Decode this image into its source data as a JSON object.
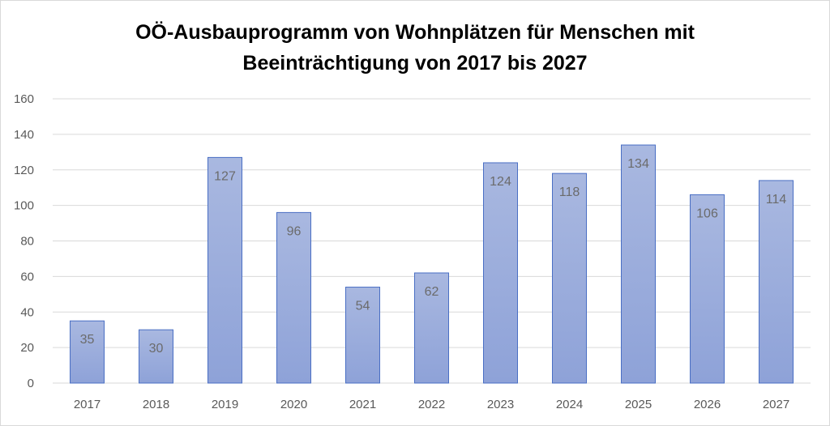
{
  "chart_data": {
    "type": "bar",
    "title_line1": "OÖ-Ausbauprogramm von Wohnplätzen für Menschen mit",
    "title_line2": "Beeinträchtigung von 2017 bis 2027",
    "categories": [
      "2017",
      "2018",
      "2019",
      "2020",
      "2021",
      "2022",
      "2023",
      "2024",
      "2025",
      "2026",
      "2027"
    ],
    "values": [
      35,
      30,
      127,
      96,
      54,
      62,
      124,
      118,
      134,
      106,
      114
    ],
    "ylim": [
      0,
      160
    ],
    "yticks": [
      0,
      20,
      40,
      60,
      80,
      100,
      120,
      140,
      160
    ],
    "grid": true,
    "legend": "none",
    "data_labels": "inside-top",
    "colors": {
      "bar_top": "#a9b8e0",
      "bar_bottom": "#8ea2d8",
      "bar_border": "#4a6fc4",
      "grid": "#d9d9d9"
    }
  }
}
